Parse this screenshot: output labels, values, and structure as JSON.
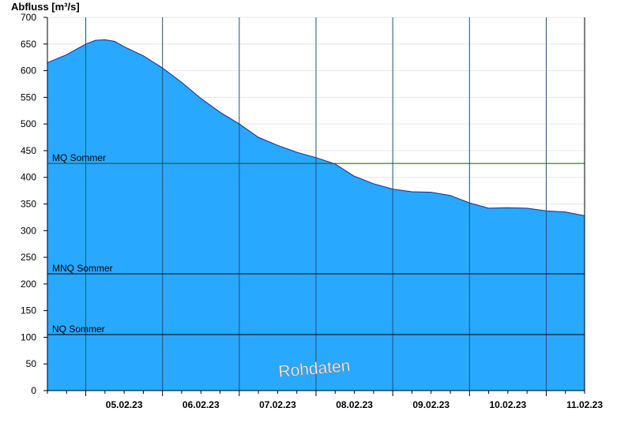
{
  "chart_data": {
    "type": "area",
    "ylabel": "Abfluss [m³/s]",
    "ylim": [
      0,
      700
    ],
    "y_ticks": [
      "0",
      "50",
      "100",
      "150",
      "200",
      "250",
      "300",
      "350",
      "400",
      "450",
      "500",
      "550",
      "600",
      "650",
      "700"
    ],
    "x_start": "2023-02-04T12:00",
    "x_end": "2023-02-11T12:00",
    "x_tick_labels": [
      "05.02.23",
      "06.02.23",
      "07.02.23",
      "08.02.23",
      "09.02.23",
      "10.02.23",
      "11.02.23"
    ],
    "grid": "horizontal",
    "series": [
      {
        "color": "#29a8ff",
        "x": [
          "2023-02-04T12:00",
          "2023-02-04T18:00",
          "2023-02-05T00:00",
          "2023-02-05T03:00",
          "2023-02-05T06:00",
          "2023-02-05T09:00",
          "2023-02-05T12:00",
          "2023-02-05T18:00",
          "2023-02-06T00:00",
          "2023-02-06T06:00",
          "2023-02-06T12:00",
          "2023-02-06T18:00",
          "2023-02-07T00:00",
          "2023-02-07T06:00",
          "2023-02-07T12:00",
          "2023-02-07T18:00",
          "2023-02-08T00:00",
          "2023-02-08T06:00",
          "2023-02-08T12:00",
          "2023-02-08T18:00",
          "2023-02-09T00:00",
          "2023-02-09T06:00",
          "2023-02-09T12:00",
          "2023-02-09T18:00",
          "2023-02-10T00:00",
          "2023-02-10T06:00",
          "2023-02-10T12:00",
          "2023-02-10T18:00",
          "2023-02-11T00:00",
          "2023-02-11T06:00",
          "2023-02-11T12:00"
        ],
        "values": [
          615,
          630,
          650,
          657,
          658,
          655,
          645,
          628,
          605,
          578,
          548,
          522,
          500,
          475,
          460,
          447,
          437,
          425,
          402,
          388,
          378,
          373,
          372,
          366,
          352,
          342,
          343,
          342,
          337,
          335,
          328
        ]
      }
    ],
    "reference_lines": [
      {
        "label": "MQ Sommer",
        "value": 426,
        "color": "#006400"
      },
      {
        "label": "MNQ Sommer",
        "value": 219,
        "color": "#000000"
      },
      {
        "label": "NQ Sommer",
        "value": 105,
        "color": "#000000"
      }
    ],
    "annotation": "Rohdaten"
  }
}
